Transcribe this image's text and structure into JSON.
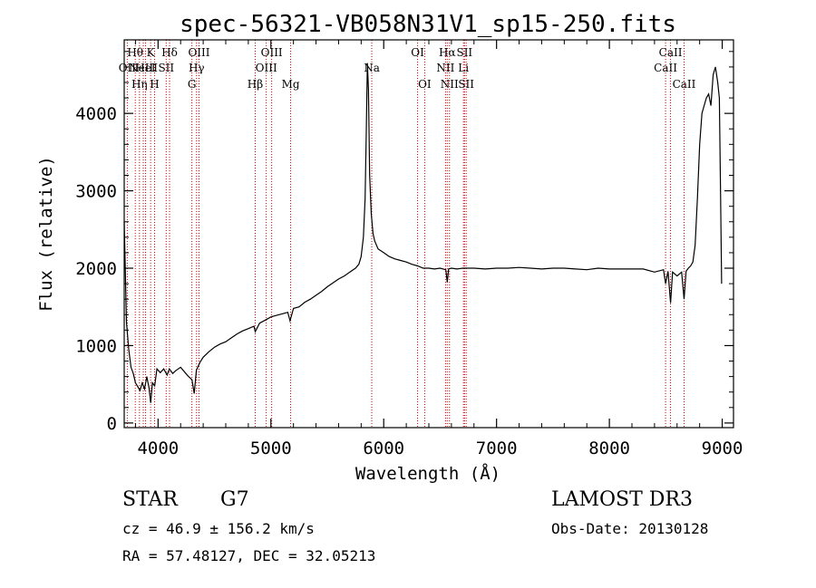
{
  "chart_data": {
    "type": "line",
    "title": "spec-56321-VB058N31V1_sp15-250.fits",
    "xlabel": "Wavelength (Å)",
    "ylabel": "Flux (relative)",
    "xlim": [
      3700,
      9100
    ],
    "ylim": [
      -60,
      4950
    ],
    "xticks": [
      4000,
      5000,
      6000,
      7000,
      8000,
      9000
    ],
    "yticks": [
      0,
      1000,
      2000,
      3000,
      4000
    ],
    "line_color": "#000000",
    "marker_color": "#cc0000",
    "spectrum": [
      [
        3700,
        2600
      ],
      [
        3720,
        1300
      ],
      [
        3740,
        950
      ],
      [
        3760,
        720
      ],
      [
        3780,
        640
      ],
      [
        3800,
        520
      ],
      [
        3820,
        470
      ],
      [
        3840,
        420
      ],
      [
        3860,
        520
      ],
      [
        3880,
        440
      ],
      [
        3900,
        600
      ],
      [
        3920,
        450
      ],
      [
        3935,
        260
      ],
      [
        3950,
        520
      ],
      [
        3970,
        480
      ],
      [
        3990,
        700
      ],
      [
        4020,
        650
      ],
      [
        4050,
        700
      ],
      [
        4080,
        620
      ],
      [
        4100,
        700
      ],
      [
        4130,
        640
      ],
      [
        4160,
        680
      ],
      [
        4200,
        720
      ],
      [
        4240,
        650
      ],
      [
        4270,
        600
      ],
      [
        4300,
        560
      ],
      [
        4320,
        380
      ],
      [
        4340,
        680
      ],
      [
        4370,
        780
      ],
      [
        4400,
        850
      ],
      [
        4450,
        920
      ],
      [
        4500,
        980
      ],
      [
        4550,
        1020
      ],
      [
        4600,
        1050
      ],
      [
        4650,
        1100
      ],
      [
        4700,
        1150
      ],
      [
        4750,
        1190
      ],
      [
        4800,
        1220
      ],
      [
        4850,
        1250
      ],
      [
        4861,
        1180
      ],
      [
        4900,
        1290
      ],
      [
        4950,
        1330
      ],
      [
        5000,
        1370
      ],
      [
        5050,
        1390
      ],
      [
        5100,
        1410
      ],
      [
        5150,
        1430
      ],
      [
        5170,
        1320
      ],
      [
        5200,
        1480
      ],
      [
        5250,
        1500
      ],
      [
        5300,
        1560
      ],
      [
        5350,
        1600
      ],
      [
        5400,
        1650
      ],
      [
        5450,
        1700
      ],
      [
        5500,
        1760
      ],
      [
        5550,
        1810
      ],
      [
        5600,
        1860
      ],
      [
        5650,
        1900
      ],
      [
        5700,
        1950
      ],
      [
        5750,
        2000
      ],
      [
        5780,
        2050
      ],
      [
        5800,
        2150
      ],
      [
        5820,
        2400
      ],
      [
        5835,
        2900
      ],
      [
        5845,
        3700
      ],
      [
        5855,
        4650
      ],
      [
        5865,
        4300
      ],
      [
        5875,
        3200
      ],
      [
        5890,
        2700
      ],
      [
        5905,
        2450
      ],
      [
        5920,
        2350
      ],
      [
        5950,
        2250
      ],
      [
        6000,
        2200
      ],
      [
        6050,
        2150
      ],
      [
        6100,
        2120
      ],
      [
        6150,
        2100
      ],
      [
        6200,
        2080
      ],
      [
        6250,
        2050
      ],
      [
        6300,
        2030
      ],
      [
        6350,
        2000
      ],
      [
        6400,
        2000
      ],
      [
        6450,
        1990
      ],
      [
        6500,
        2000
      ],
      [
        6550,
        1980
      ],
      [
        6563,
        1820
      ],
      [
        6575,
        1990
      ],
      [
        6600,
        2000
      ],
      [
        6650,
        1990
      ],
      [
        6700,
        2000
      ],
      [
        6800,
        2000
      ],
      [
        6900,
        1990
      ],
      [
        7000,
        2000
      ],
      [
        7100,
        2000
      ],
      [
        7200,
        2010
      ],
      [
        7300,
        2000
      ],
      [
        7400,
        1990
      ],
      [
        7500,
        2000
      ],
      [
        7600,
        2000
      ],
      [
        7700,
        1990
      ],
      [
        7800,
        1980
      ],
      [
        7900,
        2000
      ],
      [
        8000,
        1990
      ],
      [
        8100,
        1990
      ],
      [
        8200,
        1990
      ],
      [
        8300,
        1990
      ],
      [
        8400,
        1950
      ],
      [
        8480,
        1980
      ],
      [
        8498,
        1800
      ],
      [
        8520,
        1960
      ],
      [
        8542,
        1550
      ],
      [
        8560,
        1950
      ],
      [
        8600,
        1900
      ],
      [
        8640,
        1950
      ],
      [
        8662,
        1600
      ],
      [
        8680,
        1960
      ],
      [
        8700,
        2000
      ],
      [
        8720,
        2030
      ],
      [
        8740,
        2080
      ],
      [
        8760,
        2300
      ],
      [
        8780,
        2900
      ],
      [
        8800,
        3600
      ],
      [
        8820,
        4000
      ],
      [
        8840,
        4100
      ],
      [
        8860,
        4200
      ],
      [
        8880,
        4250
      ],
      [
        8900,
        4100
      ],
      [
        8920,
        4500
      ],
      [
        8940,
        4600
      ],
      [
        8960,
        4400
      ],
      [
        8975,
        4200
      ],
      [
        8985,
        3000
      ],
      [
        8995,
        1800
      ]
    ],
    "line_markers": [
      {
        "wl": 3727,
        "label": "OII",
        "row": 2
      },
      {
        "wl": 3798,
        "label": "Hθ",
        "row": 1
      },
      {
        "wl": 3835,
        "label": "Hη",
        "row": 3
      },
      {
        "wl": 3869,
        "label": "NeIII",
        "row": 2
      },
      {
        "wl": 3889,
        "label": "HeI",
        "row": 2
      },
      {
        "wl": 3934,
        "label": "K",
        "row": 1
      },
      {
        "wl": 3969,
        "label": "H",
        "row": 3
      },
      {
        "wl": 4072,
        "label": "SII",
        "row": 2
      },
      {
        "wl": 4102,
        "label": "Hδ",
        "row": 1
      },
      {
        "wl": 4300,
        "label": "G",
        "row": 3
      },
      {
        "wl": 4341,
        "label": "Hγ",
        "row": 2
      },
      {
        "wl": 4363,
        "label": "OIII",
        "row": 1
      },
      {
        "wl": 4861,
        "label": "Hβ",
        "row": 3
      },
      {
        "wl": 4959,
        "label": "OIII",
        "row": 2
      },
      {
        "wl": 5007,
        "label": "OIII",
        "row": 1
      },
      {
        "wl": 5175,
        "label": "Mg",
        "row": 3
      },
      {
        "wl": 5894,
        "label": "Na",
        "row": 2
      },
      {
        "wl": 6300,
        "label": "OI",
        "row": 1
      },
      {
        "wl": 6363,
        "label": "OI",
        "row": 3
      },
      {
        "wl": 6548,
        "label": "NII",
        "row": 2
      },
      {
        "wl": 6563,
        "label": "Hα",
        "row": 1
      },
      {
        "wl": 6583,
        "label": "NII",
        "row": 3
      },
      {
        "wl": 6707,
        "label": "Li",
        "row": 2
      },
      {
        "wl": 6716,
        "label": "SII",
        "row": 1
      },
      {
        "wl": 6731,
        "label": "SII",
        "row": 3
      },
      {
        "wl": 8498,
        "label": "CaII",
        "row": 2
      },
      {
        "wl": 8542,
        "label": "CaII",
        "row": 1
      },
      {
        "wl": 8662,
        "label": "CaII",
        "row": 3
      }
    ]
  },
  "info": {
    "class": "STAR",
    "subclass": "G7",
    "redshift": "cz = 46.9 ± 156.2 km/s",
    "coords": "RA =  57.48127, DEC =  32.05213",
    "survey": "LAMOST DR3",
    "obsdate": "Obs-Date: 20130128"
  }
}
